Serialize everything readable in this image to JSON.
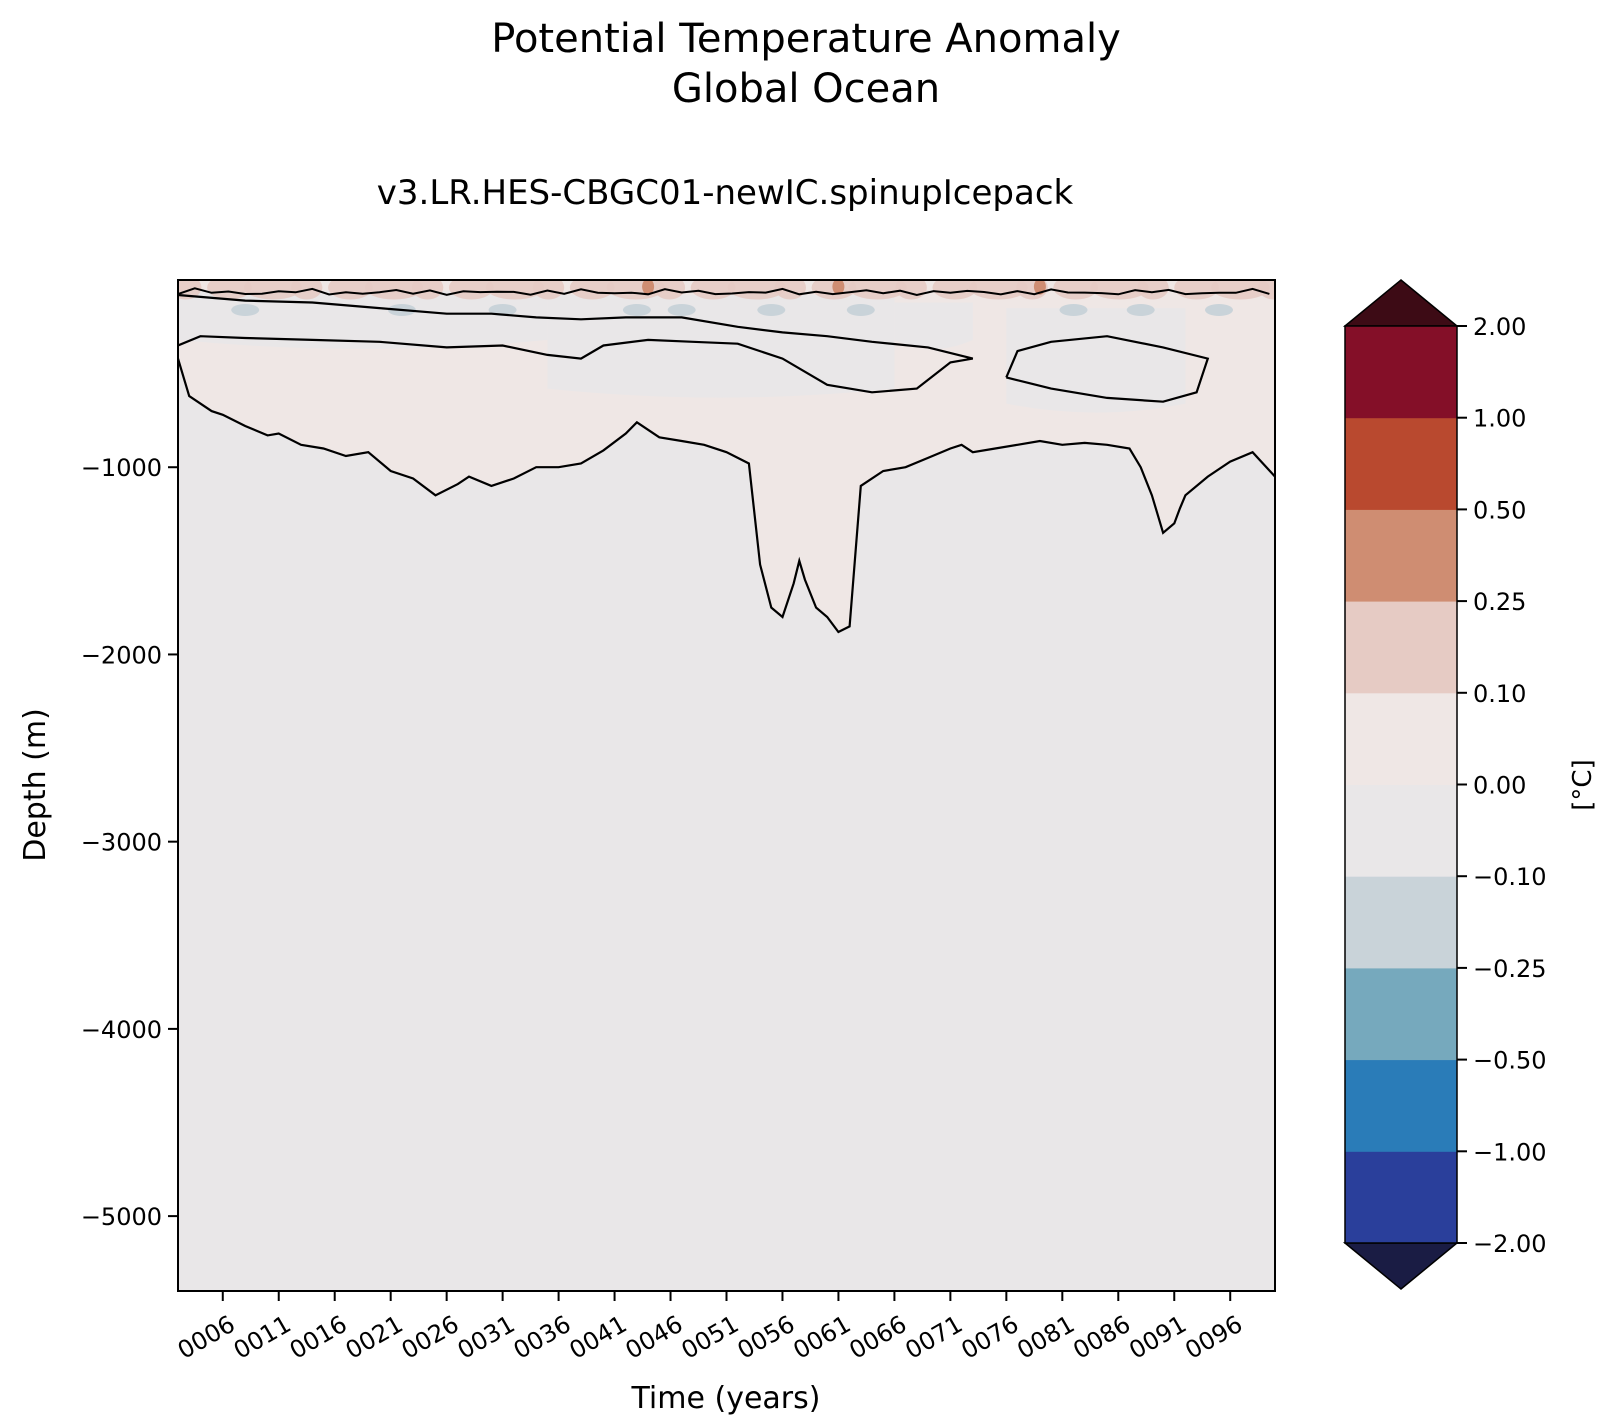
{
  "chart_data": {
    "type": "heatmap",
    "title": "Potential Temperature Anomaly",
    "title_line2": "Global Ocean",
    "subtitle": "v3.LR.HES-CBGC01-newIC.spinupIcepack",
    "xlabel": "Time (years)",
    "ylabel": "Depth (m)",
    "x_ticks": [
      "0006",
      "0011",
      "0016",
      "0021",
      "0026",
      "0031",
      "0036",
      "0041",
      "0046",
      "0051",
      "0056",
      "0061",
      "0066",
      "0071",
      "0076",
      "0081",
      "0086",
      "0091",
      "0096"
    ],
    "xlim": [
      2,
      100
    ],
    "y_ticks": [
      -1000,
      -2000,
      -3000,
      -4000,
      -5000
    ],
    "ylim": [
      -5400,
      0
    ],
    "colorbar": {
      "label": "[°C]",
      "levels": [
        -2.0,
        -1.0,
        -0.5,
        -0.25,
        -0.1,
        0.0,
        0.1,
        0.25,
        0.5,
        1.0,
        2.0
      ],
      "tick_labels": [
        "−2.00",
        "−1.00",
        "−0.50",
        "−0.25",
        "−0.10",
        "0.00",
        "0.10",
        "0.25",
        "0.50",
        "1.00",
        "2.00"
      ],
      "colors": [
        "#2a3f9b",
        "#2a7cb8",
        "#76a9bd",
        "#c9d3d9",
        "#e9e7e8",
        "#efe7e5",
        "#e6cbc4",
        "#cf8d72",
        "#b9492f",
        "#840f28"
      ],
      "under_color": "#1a1c44",
      "over_color": "#3d0b15",
      "extend": "both"
    },
    "fields": {
      "background_value": -0.05,
      "warm_layer_value": 0.05,
      "surface_warm_value": 0.15,
      "surface_cool_value": -0.15,
      "hot_spot_value": 0.3
    },
    "zero_contour_depth_profile": {
      "x": [
        2,
        3,
        5,
        6,
        8,
        10,
        11,
        13,
        15,
        17,
        19,
        21,
        23,
        25,
        27,
        28,
        30,
        32,
        34,
        36,
        38,
        40,
        42,
        43,
        44,
        45,
        47,
        49,
        51,
        53,
        54,
        55,
        56,
        57,
        57.5,
        58,
        59,
        60,
        61,
        62,
        63,
        65,
        67,
        69,
        71,
        72,
        73,
        75,
        77,
        79,
        81,
        83,
        85,
        87,
        88,
        89,
        90,
        91,
        91.5,
        92,
        94,
        96,
        98,
        100
      ],
      "depth": [
        -420,
        -620,
        -700,
        -720,
        -780,
        -830,
        -820,
        -880,
        -900,
        -940,
        -920,
        -1020,
        -1060,
        -1150,
        -1090,
        -1050,
        -1100,
        -1060,
        -1000,
        -1000,
        -980,
        -910,
        -820,
        -760,
        -800,
        -840,
        -860,
        -880,
        -920,
        -980,
        -1520,
        -1750,
        -1800,
        -1620,
        -1500,
        -1600,
        -1750,
        -1800,
        -1880,
        -1850,
        -1100,
        -1020,
        -1000,
        -950,
        -900,
        -880,
        -920,
        -900,
        -880,
        -860,
        -880,
        -870,
        -880,
        -900,
        -1000,
        -1150,
        -1350,
        -1300,
        -1220,
        -1150,
        -1050,
        -970,
        -920,
        -1050
      ]
    }
  }
}
